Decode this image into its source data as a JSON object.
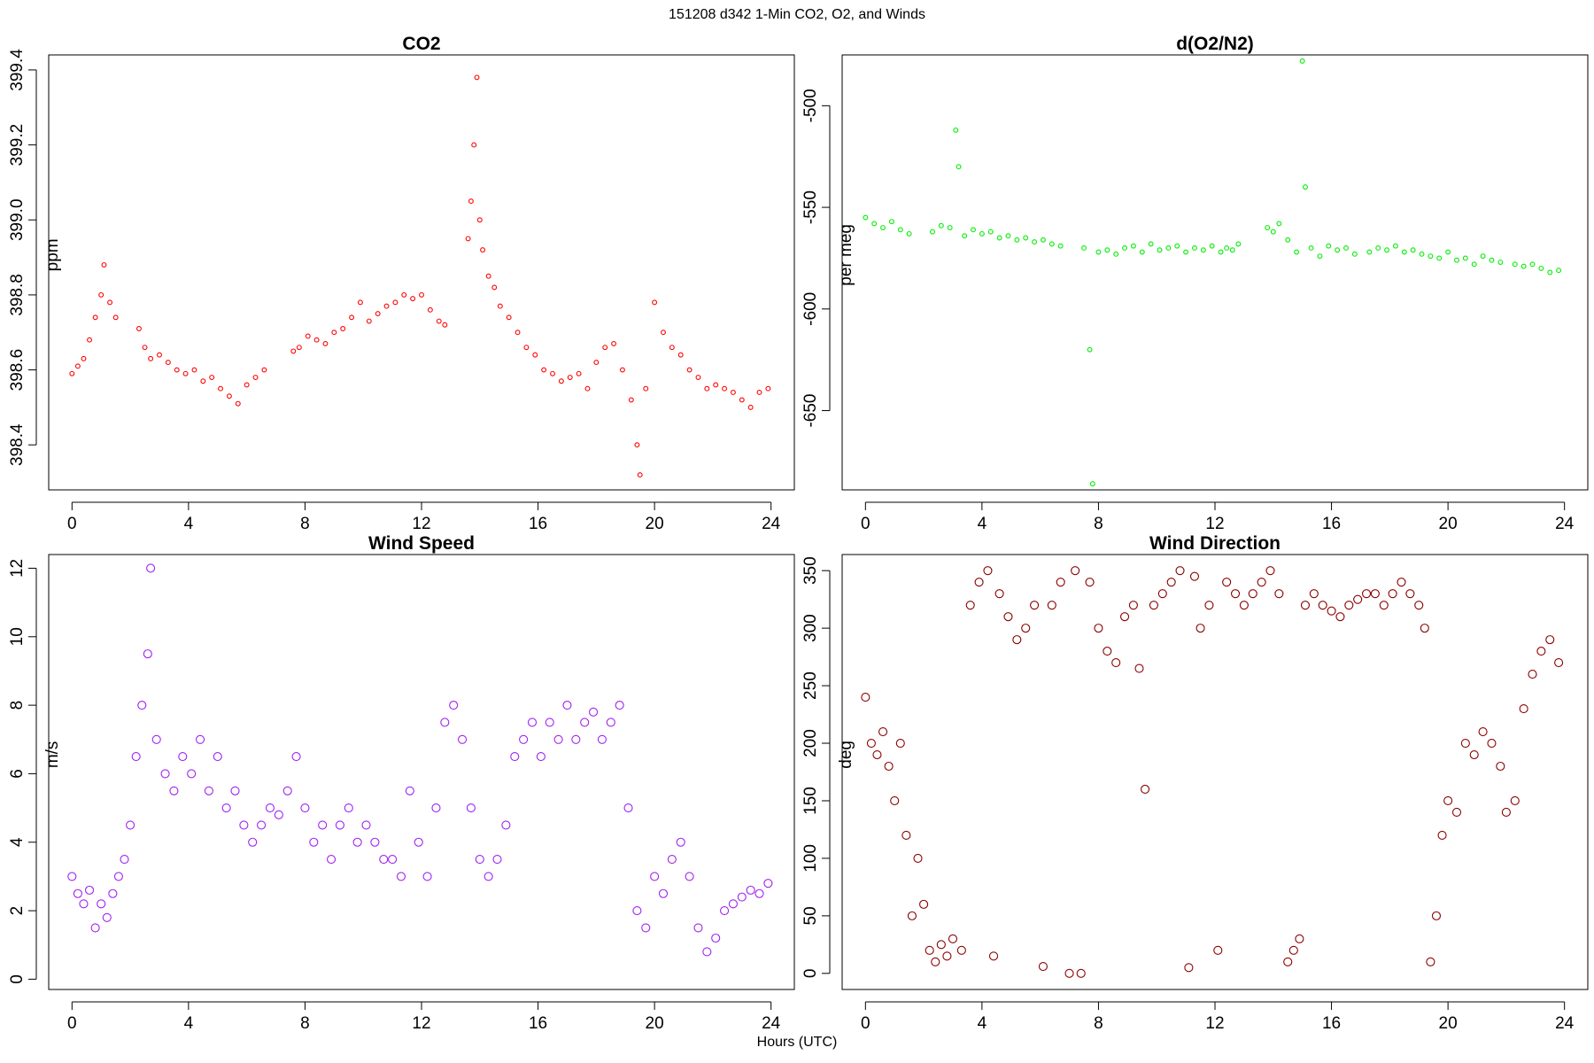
{
  "figure": {
    "suptitle": "151208   d342   1-Min CO2, O2, and Winds",
    "xlabel_common": "Hours (UTC)"
  },
  "chart_data": [
    {
      "type": "scatter",
      "title": "CO2",
      "xlabel": "",
      "ylabel": "ppm",
      "xlim": [
        -0.8,
        24.8
      ],
      "ylim": [
        398.28,
        399.44
      ],
      "xticks": [
        0,
        4,
        8,
        12,
        16,
        20,
        24
      ],
      "yticks": [
        398.4,
        398.6,
        398.8,
        399.0,
        399.2,
        399.4
      ],
      "color": "#ff0000",
      "marker": "open-circle-small",
      "series": [
        {
          "x": [
            0.0,
            0.2,
            0.4,
            0.6,
            0.8,
            1.0,
            1.1,
            1.3,
            1.5,
            2.3,
            2.5,
            2.7,
            3.0,
            3.3,
            3.6,
            3.9,
            4.2,
            4.5,
            4.8,
            5.1,
            5.4,
            5.7,
            6.0,
            6.3,
            6.6,
            7.6,
            7.8,
            8.1,
            8.4,
            8.7,
            9.0,
            9.3,
            9.6,
            9.9,
            10.2,
            10.5,
            10.8,
            11.1,
            11.4,
            11.7,
            12.0,
            12.3,
            12.6,
            12.8,
            13.6,
            13.7,
            13.8,
            13.9,
            14.0,
            14.1,
            14.3,
            14.5,
            14.7,
            15.0,
            15.3,
            15.6,
            15.9,
            16.2,
            16.5,
            16.8,
            17.1,
            17.4,
            17.7,
            18.0,
            18.3,
            18.6,
            18.9,
            19.2,
            19.4,
            19.5,
            19.7,
            20.0,
            20.3,
            20.6,
            20.9,
            21.2,
            21.5,
            21.8,
            22.1,
            22.4,
            22.7,
            23.0,
            23.3,
            23.6,
            23.9
          ],
          "y": [
            398.59,
            398.61,
            398.63,
            398.68,
            398.74,
            398.8,
            398.88,
            398.78,
            398.74,
            398.71,
            398.66,
            398.63,
            398.64,
            398.62,
            398.6,
            398.59,
            398.6,
            398.57,
            398.58,
            398.55,
            398.53,
            398.51,
            398.56,
            398.58,
            398.6,
            398.65,
            398.66,
            398.69,
            398.68,
            398.67,
            398.7,
            398.71,
            398.74,
            398.78,
            398.73,
            398.75,
            398.77,
            398.78,
            398.8,
            398.79,
            398.8,
            398.76,
            398.73,
            398.72,
            398.95,
            399.05,
            399.2,
            399.38,
            399.0,
            398.92,
            398.85,
            398.82,
            398.77,
            398.74,
            398.7,
            398.66,
            398.64,
            398.6,
            398.59,
            398.57,
            398.58,
            398.59,
            398.55,
            398.62,
            398.66,
            398.67,
            398.6,
            398.52,
            398.4,
            398.32,
            398.55,
            398.78,
            398.7,
            398.66,
            398.64,
            398.6,
            398.58,
            398.55,
            398.56,
            398.55,
            398.54,
            398.52,
            398.5,
            398.54,
            398.55
          ]
        }
      ]
    },
    {
      "type": "scatter",
      "title": "d(O2/N2)",
      "xlabel": "",
      "ylabel": "per meg",
      "xlim": [
        -0.8,
        24.8
      ],
      "ylim": [
        -689,
        -475
      ],
      "xticks": [
        0,
        4,
        8,
        12,
        16,
        20,
        24
      ],
      "yticks": [
        -500,
        -550,
        -600,
        -650
      ],
      "color": "#00ee00",
      "marker": "open-circle-small",
      "series": [
        {
          "x": [
            0.0,
            0.3,
            0.6,
            0.9,
            1.2,
            1.5,
            2.3,
            2.6,
            2.9,
            3.1,
            3.2,
            3.4,
            3.7,
            4.0,
            4.3,
            4.6,
            4.9,
            5.2,
            5.5,
            5.8,
            6.1,
            6.4,
            6.7,
            7.5,
            7.7,
            7.8,
            8.0,
            8.3,
            8.6,
            8.9,
            9.2,
            9.5,
            9.8,
            10.1,
            10.4,
            10.7,
            11.0,
            11.3,
            11.6,
            11.9,
            12.2,
            12.4,
            12.6,
            12.8,
            13.8,
            14.0,
            14.2,
            14.5,
            14.8,
            15.0,
            15.1,
            15.3,
            15.6,
            15.9,
            16.2,
            16.5,
            16.8,
            17.3,
            17.6,
            17.9,
            18.2,
            18.5,
            18.8,
            19.1,
            19.4,
            19.7,
            20.0,
            20.3,
            20.6,
            20.9,
            21.2,
            21.5,
            21.8,
            22.3,
            22.6,
            22.9,
            23.2,
            23.5,
            23.8
          ],
          "y": [
            -555,
            -558,
            -560,
            -557,
            -561,
            -563,
            -562,
            -559,
            -560,
            -512,
            -530,
            -564,
            -561,
            -563,
            -562,
            -565,
            -564,
            -566,
            -565,
            -567,
            -566,
            -568,
            -569,
            -570,
            -620,
            -686,
            -572,
            -571,
            -573,
            -570,
            -569,
            -572,
            -568,
            -571,
            -570,
            -569,
            -572,
            -570,
            -571,
            -569,
            -572,
            -570,
            -571,
            -568,
            -560,
            -562,
            -558,
            -566,
            -572,
            -478,
            -540,
            -570,
            -574,
            -569,
            -571,
            -570,
            -573,
            -572,
            -570,
            -571,
            -569,
            -572,
            -571,
            -573,
            -574,
            -575,
            -572,
            -576,
            -575,
            -578,
            -574,
            -576,
            -577,
            -578,
            -579,
            -578,
            -580,
            -582,
            -581
          ]
        }
      ]
    },
    {
      "type": "scatter",
      "title": "Wind Speed",
      "xlabel": "",
      "ylabel": "m/s",
      "xlim": [
        -0.8,
        24.8
      ],
      "ylim": [
        -0.3,
        12.4
      ],
      "xticks": [
        0,
        4,
        8,
        12,
        16,
        20,
        24
      ],
      "yticks": [
        0,
        2,
        4,
        6,
        8,
        10,
        12
      ],
      "color": "#a020f0",
      "marker": "open-circle",
      "series": [
        {
          "x": [
            0.0,
            0.2,
            0.4,
            0.6,
            0.8,
            1.0,
            1.2,
            1.4,
            1.6,
            1.8,
            2.0,
            2.2,
            2.4,
            2.6,
            2.7,
            2.9,
            3.2,
            3.5,
            3.8,
            4.1,
            4.4,
            4.7,
            5.0,
            5.3,
            5.6,
            5.9,
            6.2,
            6.5,
            6.8,
            7.1,
            7.4,
            7.7,
            8.0,
            8.3,
            8.6,
            8.9,
            9.2,
            9.5,
            9.8,
            10.1,
            10.4,
            10.7,
            11.0,
            11.3,
            11.6,
            11.9,
            12.2,
            12.5,
            12.8,
            13.1,
            13.4,
            13.7,
            14.0,
            14.3,
            14.6,
            14.9,
            15.2,
            15.5,
            15.8,
            16.1,
            16.4,
            16.7,
            17.0,
            17.3,
            17.6,
            17.9,
            18.2,
            18.5,
            18.8,
            19.1,
            19.4,
            19.7,
            20.0,
            20.3,
            20.6,
            20.9,
            21.2,
            21.5,
            21.8,
            22.1,
            22.4,
            22.7,
            23.0,
            23.3,
            23.6,
            23.9
          ],
          "y": [
            3.0,
            2.5,
            2.2,
            2.6,
            1.5,
            2.2,
            1.8,
            2.5,
            3.0,
            3.5,
            4.5,
            6.5,
            8.0,
            9.5,
            12.0,
            7.0,
            6.0,
            5.5,
            6.5,
            6.0,
            7.0,
            5.5,
            6.5,
            5.0,
            5.5,
            4.5,
            4.0,
            4.5,
            5.0,
            4.8,
            5.5,
            6.5,
            5.0,
            4.0,
            4.5,
            3.5,
            4.5,
            5.0,
            4.0,
            4.5,
            4.0,
            3.5,
            3.5,
            3.0,
            5.5,
            4.0,
            3.0,
            5.0,
            7.5,
            8.0,
            7.0,
            5.0,
            3.5,
            3.0,
            3.5,
            4.5,
            6.5,
            7.0,
            7.5,
            6.5,
            7.5,
            7.0,
            8.0,
            7.0,
            7.5,
            7.8,
            7.0,
            7.5,
            8.0,
            5.0,
            2.0,
            1.5,
            3.0,
            2.5,
            3.5,
            4.0,
            3.0,
            1.5,
            0.8,
            1.2,
            2.0,
            2.2,
            2.4,
            2.6,
            2.5,
            2.8
          ]
        }
      ]
    },
    {
      "type": "scatter",
      "title": "Wind Direction",
      "xlabel": "",
      "ylabel": "deg",
      "xlim": [
        -0.8,
        24.8
      ],
      "ylim": [
        -14,
        364
      ],
      "xticks": [
        0,
        4,
        8,
        12,
        16,
        20,
        24
      ],
      "yticks": [
        0,
        50,
        100,
        150,
        200,
        250,
        300,
        350
      ],
      "color": "#8b0000",
      "marker": "open-circle",
      "series": [
        {
          "x": [
            0.0,
            0.2,
            0.4,
            0.6,
            0.8,
            1.0,
            1.2,
            1.4,
            1.6,
            1.8,
            2.0,
            2.2,
            2.4,
            2.6,
            2.8,
            3.0,
            3.3,
            3.6,
            3.9,
            4.2,
            4.4,
            4.6,
            4.9,
            5.2,
            5.5,
            5.8,
            6.1,
            6.4,
            6.7,
            7.0,
            7.2,
            7.4,
            7.7,
            8.0,
            8.3,
            8.6,
            8.9,
            9.2,
            9.4,
            9.6,
            9.9,
            10.2,
            10.5,
            10.8,
            11.1,
            11.3,
            11.5,
            11.8,
            12.1,
            12.4,
            12.7,
            13.0,
            13.3,
            13.6,
            13.9,
            14.2,
            14.5,
            14.7,
            14.9,
            15.1,
            15.4,
            15.7,
            16.0,
            16.3,
            16.6,
            16.9,
            17.2,
            17.5,
            17.8,
            18.1,
            18.4,
            18.7,
            19.0,
            19.2,
            19.4,
            19.6,
            19.8,
            20.0,
            20.3,
            20.6,
            20.9,
            21.2,
            21.5,
            21.8,
            22.0,
            22.3,
            22.6,
            22.9,
            23.2,
            23.5,
            23.8
          ],
          "y": [
            240,
            200,
            190,
            210,
            180,
            150,
            200,
            120,
            50,
            100,
            60,
            20,
            10,
            25,
            15,
            30,
            20,
            320,
            340,
            350,
            15,
            330,
            310,
            290,
            300,
            320,
            6,
            320,
            340,
            0,
            350,
            0,
            340,
            300,
            280,
            270,
            310,
            320,
            265,
            160,
            320,
            330,
            340,
            350,
            5,
            345,
            300,
            320,
            20,
            340,
            330,
            320,
            330,
            340,
            350,
            330,
            10,
            20,
            30,
            320,
            330,
            320,
            315,
            310,
            320,
            325,
            330,
            330,
            320,
            330,
            340,
            330,
            320,
            300,
            10,
            50,
            120,
            150,
            140,
            200,
            190,
            210,
            200,
            180,
            140,
            150,
            230,
            260,
            280,
            290,
            270
          ]
        }
      ]
    }
  ]
}
